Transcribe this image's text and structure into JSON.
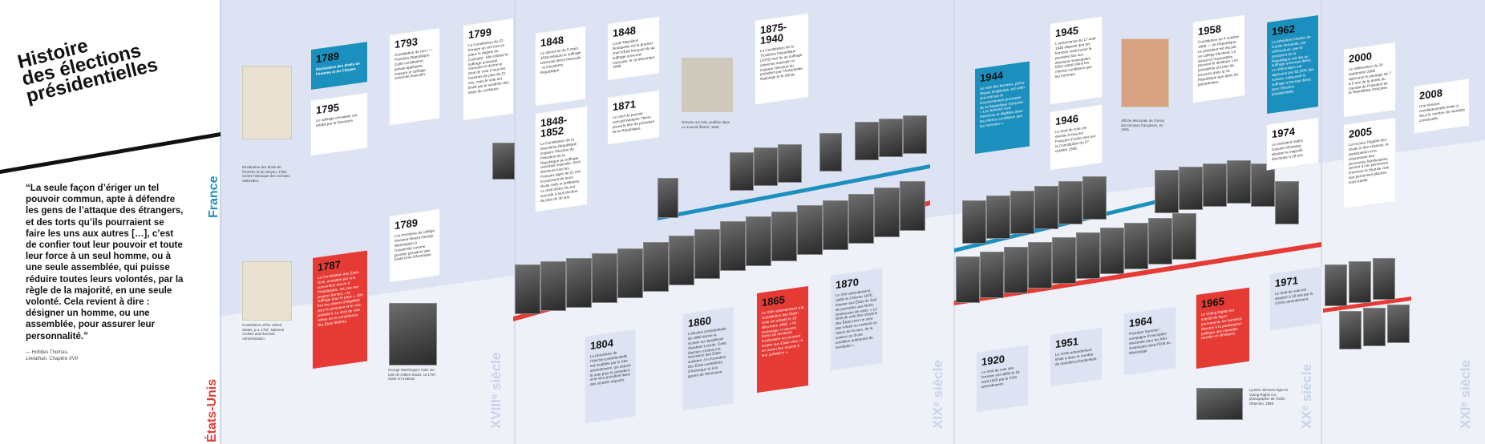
{
  "header": {
    "title_line1": "Histoire",
    "title_line2": "des élections",
    "title_line3": "présidentielles"
  },
  "quote": {
    "text": "“La seule façon d’ériger un tel pouvoir commun, apte à défendre les gens de l’attaque des étrangers, et des torts qu’ils pourraient se faire les uns aux autres […], c’est de confier tout leur pouvoir et toute leur force à un seul homme, ou à une seule assemblée, qui puisse réduire toutes leurs volontés, par la règle de la majorité, en une seule volonté. Cela revient à dire : désigner un homme, ou une assemblée, pour assurer leur personnalité.”",
    "source_line1": "— Hobbes Thomas,",
    "source_line2": "Léviathan, Chapitre XVII"
  },
  "labels": {
    "france": "France",
    "usa": "États-Unis",
    "c18": "XVIIIᵉ siècle",
    "c19": "XIXᵉ siècle",
    "c20": "XXᵉ siècle",
    "c21": "XXIᵉ siècle"
  },
  "colors": {
    "blue": "#1b8fbe",
    "red": "#e63b35",
    "band": "#dde3f3",
    "france_label": "#1b8fbe",
    "usa_label": "#e63b35"
  },
  "captions": {
    "fr_doc": "Déclaration des droits de l’homme et du citoyen, 1789, Centre historique des Archives nationales.",
    "us_doc": "Constitution of the United States, p.4, 1787, National Archive and Records Administration",
    "washington": "George Washington, huile sur toile de Gilbert Stuart, ca 1797, Clark Art Institute",
    "gravure": "Gravure sur bois, publiée dans Le Journal illustré, 1848",
    "affiche": "Affiche électorale de l’Union des femmes françaises, en 1945.",
    "johnson": "Lyndon Johnson signe le Voting Rights Act, photographie de Yoichi Okamoto, 1965."
  },
  "france_events": [
    {
      "id": "fr1789",
      "year": "1789",
      "text": "Déclaration des droits de l’homme et du Citoyen."
    },
    {
      "id": "fr1795",
      "year": "1795",
      "text": "Le suffrage censitaire est rétabli par le Directoire."
    },
    {
      "id": "fr1793",
      "year": "1793",
      "text": "Constitution de l’an I — Première République. Cette constitution, jamais appliquée, instaure le suffrage universel masculin."
    },
    {
      "id": "fr1799",
      "year": "1799",
      "text": "La Constitution du 22 frimaire an VIII met en place le régime du Consulat : elle institue le suffrage universel masculin et donne le droit de vote à tous les hommes de plus de 21 ans, mais le vote est limité par le système des listes de confiance."
    },
    {
      "id": "fr1848a",
      "year": "1848",
      "text": "Le décret-loi du 5 mars 1848 instaure le suffrage universel direct masculin : la Deuxième République."
    },
    {
      "id": "fr1848b",
      "year": "1848",
      "text": "Louis-Napoléon Bonaparte est le premier chef d’État français élu au suffrage universel masculin, le 10 décembre 1848."
    },
    {
      "id": "fr18481852",
      "year": "1848-1852",
      "text": "La Constitution de la Deuxième République instaure l’élection du Président de la République au suffrage universel masculin. Sont électeurs tous les Français âgés de 21 ans et jouissant de leurs droits civils et politiques. Le droit d’être élu est accordé à tout électeur de plus de 30 ans."
    },
    {
      "id": "fr1871",
      "year": "1871",
      "text": "Le chef du pouvoir exécutif Adolphe Thiers prend le titre de président de la République."
    },
    {
      "id": "fr18751940",
      "year": "1875-1940",
      "text": "La Constitution de la Troisième République (1875) met fin au suffrage universel masculin et instaure l’élection du président par l’Assemblée Nationale et le Sénat."
    },
    {
      "id": "fr1944",
      "year": "1944",
      "text": "Le vote des femmes, prévu depuis longtemps, est enfin accordé par le Gouvernement provisoire de la République française : « Les femmes sont électrices et éligibles dans les mêmes conditions que les hommes »."
    },
    {
      "id": "fr1945",
      "year": "1945",
      "text": "L’ordonnance du 17 août 1945 dispose que les femmes votent pour la première fois aux élections municipales. Elles votent dans les mêmes conditions que les hommes."
    },
    {
      "id": "fr1946",
      "year": "1946",
      "text": "Le droit de vote est étendu à tous les Français d’outre-mer par la Constitution du 27 octobre 1946."
    },
    {
      "id": "fr1958",
      "year": "1958",
      "text": "Constitution du 4 octobre 1958 — Ve République. Le président est élu par un collège électoral. Le Sénat et l’Assemblée peuvent le destituer. Les présidents ont plus de pouvoirs dans la Ve République que dans les précédentes."
    },
    {
      "id": "fr1962",
      "year": "1962",
      "text": "Le président Charles de Gaulle demande, par référendum, que le président de la République soit élu au suffrage universel direct. Le référendum est approuvé par 62,25% des votants, instaurant le suffrage universel direct pour l’élection présidentielle."
    },
    {
      "id": "fr1974",
      "year": "1974",
      "text": "Le président Valéry Giscard d’Estaing abaisse la majorité électorale à 18 ans."
    },
    {
      "id": "fr2000",
      "year": "2000",
      "text": "Le référendum du 24 septembre 2000 approuve le passage de 7 à 5 ans de la durée du mandat du Président de la République française."
    },
    {
      "id": "fr2005",
      "year": "2005",
      "text": "La loi pour l’égalité des droits et des chances, la participation et la citoyenneté des personnes handicapées permet à ces personnes d’exercer le droit de vote aux personnes placées sous tutelle."
    },
    {
      "id": "fr2008",
      "year": "2008",
      "text": "Une révision constitutionnelle limite à deux le nombre de mandats consécutifs."
    }
  ],
  "us_events": [
    {
      "id": "us1787",
      "year": "1787",
      "text": "La Constitution des États-Unis, acceptée par une convention réunie à Philadelphie, est, par ses propres termes, « le suffrage pour le pays ». Elle fixe les critères d’éligibilité pour le président et le vice-président. Le droit de vote relève de la compétence des États fédérés."
    },
    {
      "id": "us1789",
      "year": "1789",
      "text": "Les membres du collège électoral élisent George Washington à l’unanimité comme premier président des États-Unis d’Amérique."
    },
    {
      "id": "us1804",
      "year": "1804",
      "text": "La procédure de l’élection présidentielle est modifiée par le XIIe amendement, qui sépare le vote pour le président et le vice-président dans des scrutins séparés."
    },
    {
      "id": "us1860",
      "year": "1860",
      "text": "L’élection présidentielle de 1860 donne la victoire au républicain Abraham Lincoln. Cette élection conduit à la sécession des États sudistes, à la formation des États confédérés d’Amérique et à la guerre de Sécession."
    },
    {
      "id": "us1865",
      "year": "1865",
      "text": "Le XIIIe amendement à la Constitution des États-Unis est adopté le 18 décembre 1865. « Ni esclavage, ni aucune forme de servitude involontaire ne pourront exister aux États-Unis, ni en aucun lieu soumis à leur juridiction »."
    },
    {
      "id": "us1870",
      "year": "1870",
      "text": "Le XVe amendement, ratifié le 3 février 1870, impose aux États du Sud de permettre aux Noirs-Américains de voter. « Le droit de vote des citoyens des États-Unis ne sera pas refusé ou restreint en raison de la race, de la couleur ou d’une condition antérieure de servitude »."
    },
    {
      "id": "us1920",
      "year": "1920",
      "text": "Le droit de vote des femmes est ratifié le 18 août 1920 par le XIXe amendement."
    },
    {
      "id": "us1951",
      "year": "1951",
      "text": "Le XXIIe amendement limite à deux le nombre de mandats présidentiels."
    },
    {
      "id": "us1964",
      "year": "1964",
      "text": "Freedom Summer : campagne d’inscription électorale pour les Afro-Américains dans l’État du Mississippi."
    },
    {
      "id": "us1965",
      "year": "1965",
      "text": "Le Voting Rights Act interdit de façon permanente les barrières directes à la participation politique des minorités raciales et ethniques."
    },
    {
      "id": "us1971",
      "year": "1971",
      "text": "Le droit de vote est abaissé à 18 ans par le XXVIe amendement."
    }
  ]
}
